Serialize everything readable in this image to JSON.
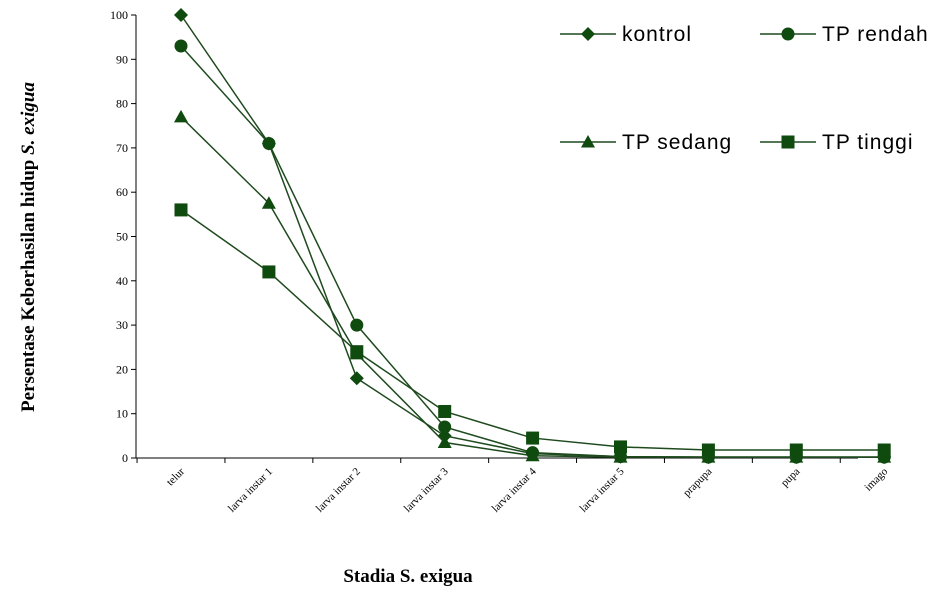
{
  "chart_data": {
    "type": "line",
    "xlabel": "Stadia S. exigua",
    "ylabel_parts": [
      "Persentase Keberhasilan hidup ",
      "S. exigua"
    ],
    "ylim": [
      0,
      100
    ],
    "yticks": [
      0,
      10,
      20,
      30,
      40,
      50,
      60,
      70,
      80,
      90,
      100
    ],
    "categories": [
      "telur",
      "larva instar 1",
      "larva instar 2",
      "larva instar 3",
      "larva instar 4",
      "larva instar 5",
      "prapupa",
      "pupa",
      "imago"
    ],
    "line_color": "#1e4a1e",
    "marker_color": "#0f4a0f",
    "legend_placement": "top-right",
    "series": [
      {
        "name": "kontrol",
        "marker": "diamond",
        "values": [
          100,
          71,
          18,
          5,
          1,
          0.3,
          0.2,
          0.2,
          0.2
        ]
      },
      {
        "name": "TP rendah",
        "marker": "circle",
        "values": [
          93,
          71,
          30,
          7,
          1.2,
          0.3,
          0.2,
          0.2,
          0.2
        ]
      },
      {
        "name": "TP sedang",
        "marker": "triangle",
        "values": [
          77,
          57.5,
          23.5,
          3.5,
          0.5,
          0.2,
          0.2,
          0.2,
          0.2
        ]
      },
      {
        "name": "TP tinggi",
        "marker": "square",
        "values": [
          56,
          42,
          24,
          10.5,
          4.5,
          2.5,
          1.8,
          1.8,
          1.8
        ]
      }
    ]
  }
}
